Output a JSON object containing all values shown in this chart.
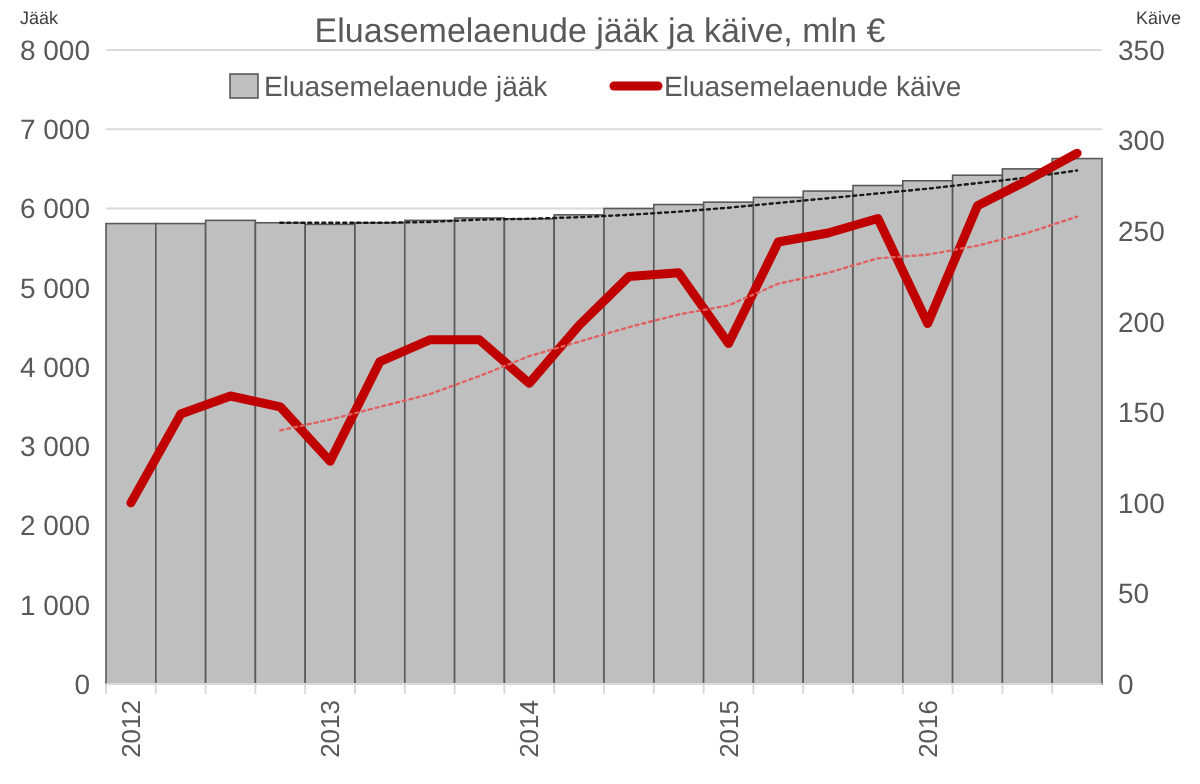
{
  "chart_data": {
    "type": "bar",
    "title": "Eluasemelaenude jääk ja käive, mln €",
    "ylabel": "Jääk",
    "y2label": "Käive",
    "categories": [
      "2012",
      null,
      null,
      null,
      "2013",
      null,
      null,
      null,
      "2014",
      null,
      null,
      null,
      "2015",
      null,
      null,
      null,
      "2016",
      null,
      null,
      null
    ],
    "ylim": [
      0,
      8000
    ],
    "yticks": [
      {
        "value": 0,
        "label": "0"
      },
      {
        "value": 1000,
        "label": "1 000"
      },
      {
        "value": 2000,
        "label": "2 000"
      },
      {
        "value": 3000,
        "label": "3 000"
      },
      {
        "value": 4000,
        "label": "4 000"
      },
      {
        "value": 5000,
        "label": "5 000"
      },
      {
        "value": 6000,
        "label": "6 000"
      },
      {
        "value": 7000,
        "label": "7 000"
      },
      {
        "value": 8000,
        "label": "8 000"
      }
    ],
    "y2lim": [
      0,
      350
    ],
    "y2ticks": [
      0,
      50,
      100,
      150,
      200,
      250,
      300,
      350
    ],
    "grid": "y",
    "legend": "top",
    "series": [
      {
        "name": "Eluasemelaenude jääk",
        "color": "#bfbfbf",
        "values": [
          5810,
          5810,
          5850,
          5820,
          5800,
          5820,
          5850,
          5880,
          5870,
          5920,
          6000,
          6050,
          6080,
          6140,
          6220,
          6290,
          6350,
          6420,
          6500,
          6630
        ]
      },
      {
        "type": "line",
        "line_style": "dotted",
        "color": "#1a1a1a",
        "values": [
          null,
          null,
          null,
          5820,
          5820,
          5820,
          5830,
          5860,
          5870,
          5890,
          5920,
          5960,
          6010,
          6070,
          6130,
          6190,
          6250,
          6320,
          6390,
          6480
        ]
      },
      {
        "name": "Eluasemelaenude käive",
        "type": "line",
        "axis": "y2",
        "line_style": "solid",
        "color": "#c00000",
        "values": [
          100,
          149,
          159,
          153,
          123,
          178,
          190,
          190,
          166,
          198,
          225,
          227,
          188,
          244,
          249,
          257,
          199,
          264,
          278,
          293
        ]
      },
      {
        "type": "line",
        "axis": "y2",
        "line_style": "dotted",
        "color": "#e06060",
        "values": [
          null,
          null,
          null,
          140,
          146,
          153,
          160,
          170,
          181,
          189,
          197,
          204,
          209,
          221,
          227,
          235,
          237,
          242,
          249,
          258
        ]
      }
    ]
  }
}
